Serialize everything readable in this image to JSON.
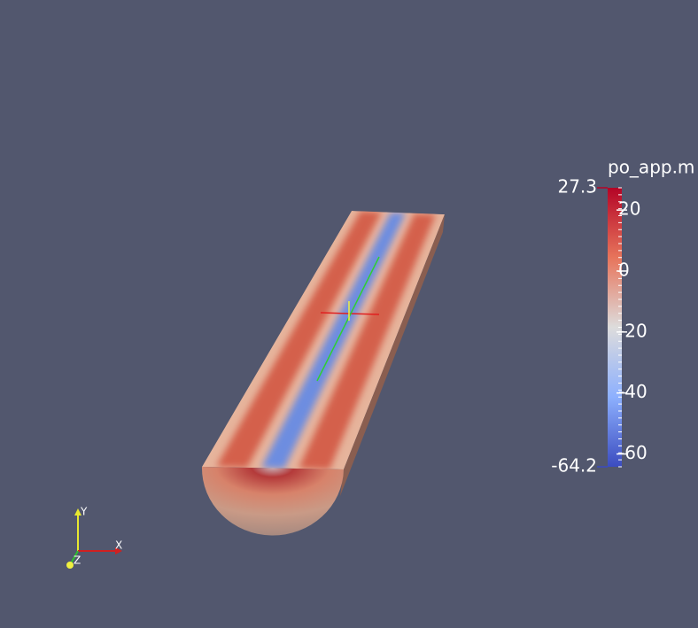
{
  "colorbar": {
    "title": "po_app.m",
    "min": -64.2,
    "max": 27.3,
    "ticks": [
      20,
      0,
      -20,
      -40,
      -60
    ]
  },
  "axes_triad": {
    "x": "X",
    "y": "Y",
    "z": "Z"
  }
}
